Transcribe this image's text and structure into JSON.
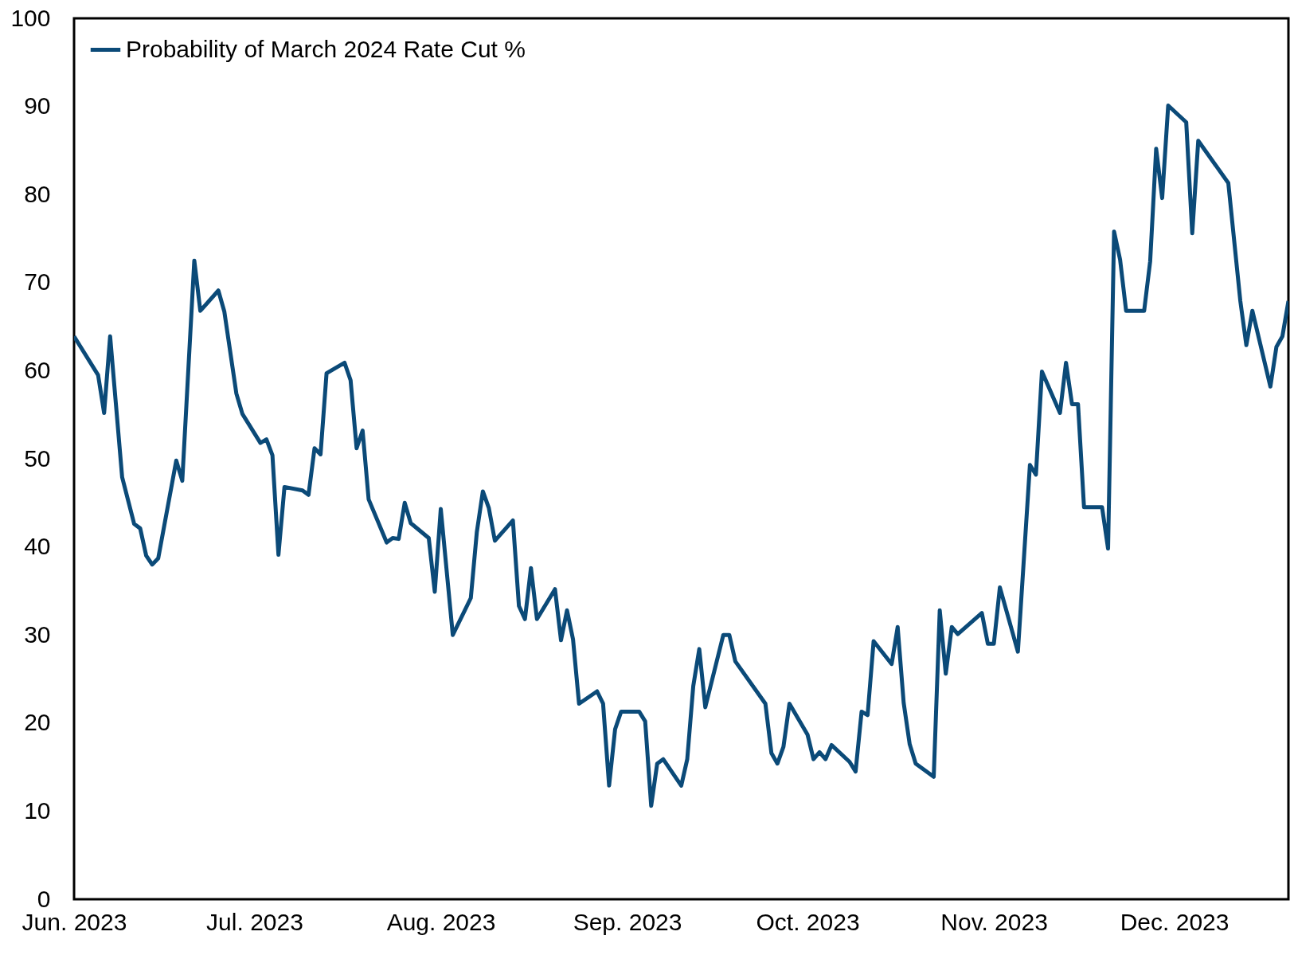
{
  "chart_data": {
    "type": "line",
    "legend": "top left",
    "grid": false,
    "line_style": "solid",
    "marker": "none",
    "xlim": [
      "2023-06-01",
      "2023-12-20"
    ],
    "xticks": [
      {
        "value": "2023-06-01",
        "label": "Jun. 2023"
      },
      {
        "value": "2023-07-01",
        "label": "Jul. 2023"
      },
      {
        "value": "2023-08-01",
        "label": "Aug. 2023"
      },
      {
        "value": "2023-09-01",
        "label": "Sep. 2023"
      },
      {
        "value": "2023-10-01",
        "label": "Oct. 2023"
      },
      {
        "value": "2023-11-01",
        "label": "Nov. 2023"
      },
      {
        "value": "2023-12-01",
        "label": "Dec. 2023"
      }
    ],
    "ylim": [
      0,
      100
    ],
    "yticks": [
      0,
      10,
      20,
      30,
      40,
      50,
      60,
      70,
      80,
      90,
      100
    ],
    "x": [
      "2023-06-01",
      "2023-06-05",
      "2023-06-06",
      "2023-06-07",
      "2023-06-09",
      "2023-06-11",
      "2023-06-12",
      "2023-06-13",
      "2023-06-14",
      "2023-06-15",
      "2023-06-18",
      "2023-06-19",
      "2023-06-21",
      "2023-06-22",
      "2023-06-25",
      "2023-06-26",
      "2023-06-28",
      "2023-06-29",
      "2023-07-02",
      "2023-07-03",
      "2023-07-04",
      "2023-07-05",
      "2023-07-06",
      "2023-07-09",
      "2023-07-10",
      "2023-07-11",
      "2023-07-12",
      "2023-07-13",
      "2023-07-16",
      "2023-07-17",
      "2023-07-18",
      "2023-07-19",
      "2023-07-20",
      "2023-07-23",
      "2023-07-24",
      "2023-07-25",
      "2023-07-26",
      "2023-07-27",
      "2023-07-30",
      "2023-07-31",
      "2023-08-01",
      "2023-08-03",
      "2023-08-06",
      "2023-08-07",
      "2023-08-08",
      "2023-08-09",
      "2023-08-10",
      "2023-08-13",
      "2023-08-14",
      "2023-08-15",
      "2023-08-16",
      "2023-08-17",
      "2023-08-20",
      "2023-08-21",
      "2023-08-22",
      "2023-08-23",
      "2023-08-24",
      "2023-08-27",
      "2023-08-28",
      "2023-08-29",
      "2023-08-30",
      "2023-08-31",
      "2023-09-03",
      "2023-09-04",
      "2023-09-05",
      "2023-09-06",
      "2023-09-07",
      "2023-09-10",
      "2023-09-11",
      "2023-09-12",
      "2023-09-13",
      "2023-09-14",
      "2023-09-17",
      "2023-09-18",
      "2023-09-19",
      "2023-09-24",
      "2023-09-25",
      "2023-09-26",
      "2023-09-27",
      "2023-09-28",
      "2023-10-01",
      "2023-10-02",
      "2023-10-03",
      "2023-10-04",
      "2023-10-05",
      "2023-10-08",
      "2023-10-09",
      "2023-10-10",
      "2023-10-11",
      "2023-10-12",
      "2023-10-15",
      "2023-10-16",
      "2023-10-17",
      "2023-10-18",
      "2023-10-19",
      "2023-10-22",
      "2023-10-23",
      "2023-10-24",
      "2023-10-25",
      "2023-10-26",
      "2023-10-30",
      "2023-10-31",
      "2023-11-01",
      "2023-11-02",
      "2023-11-05",
      "2023-11-07",
      "2023-11-08",
      "2023-11-09",
      "2023-11-12",
      "2023-11-13",
      "2023-11-14",
      "2023-11-15",
      "2023-11-16",
      "2023-11-19",
      "2023-11-20",
      "2023-11-21",
      "2023-11-22",
      "2023-11-23",
      "2023-11-26",
      "2023-11-27",
      "2023-11-28",
      "2023-11-29",
      "2023-11-30",
      "2023-12-03",
      "2023-12-04",
      "2023-12-05",
      "2023-12-10",
      "2023-12-12",
      "2023-12-13",
      "2023-12-14",
      "2023-12-17",
      "2023-12-18",
      "2023-12-19",
      "2023-12-20"
    ],
    "series": [
      {
        "name": "Probability of March 2024 Rate Cut %",
        "color": "#0b4a78",
        "values": [
          63.9,
          59.5,
          55.2,
          63.9,
          47.9,
          42.6,
          42.1,
          39.0,
          38.0,
          38.7,
          49.8,
          47.5,
          72.5,
          66.8,
          69.1,
          66.7,
          57.4,
          55.1,
          51.8,
          52.2,
          50.4,
          39.1,
          46.8,
          46.4,
          45.9,
          51.2,
          50.5,
          59.7,
          60.9,
          58.9,
          51.2,
          53.2,
          45.4,
          40.5,
          41.0,
          40.9,
          45.0,
          42.7,
          41.0,
          34.9,
          44.3,
          30.0,
          34.2,
          41.7,
          46.3,
          44.4,
          40.7,
          43.0,
          33.3,
          31.8,
          37.6,
          31.8,
          35.2,
          29.4,
          32.8,
          29.5,
          22.2,
          23.6,
          22.2,
          12.9,
          19.3,
          21.3,
          21.3,
          20.2,
          10.6,
          15.4,
          15.9,
          12.9,
          15.9,
          24.2,
          28.4,
          21.8,
          30.0,
          30.0,
          27.0,
          22.2,
          16.6,
          15.4,
          17.3,
          22.2,
          18.7,
          15.9,
          16.7,
          15.9,
          17.5,
          15.6,
          14.5,
          21.3,
          20.9,
          29.3,
          26.7,
          30.9,
          22.3,
          17.6,
          15.4,
          13.9,
          32.8,
          25.6,
          30.9,
          30.1,
          32.5,
          29.0,
          29.0,
          35.4,
          28.1,
          49.3,
          48.2,
          59.9,
          55.2,
          60.9,
          56.2,
          56.2,
          44.5,
          44.5,
          39.8,
          75.8,
          72.6,
          66.8,
          66.8,
          72.4,
          85.2,
          79.6,
          90.1,
          88.2,
          75.6,
          86.1,
          81.3,
          67.9,
          62.9,
          66.8,
          58.2,
          62.7,
          63.9,
          67.9
        ]
      }
    ]
  }
}
